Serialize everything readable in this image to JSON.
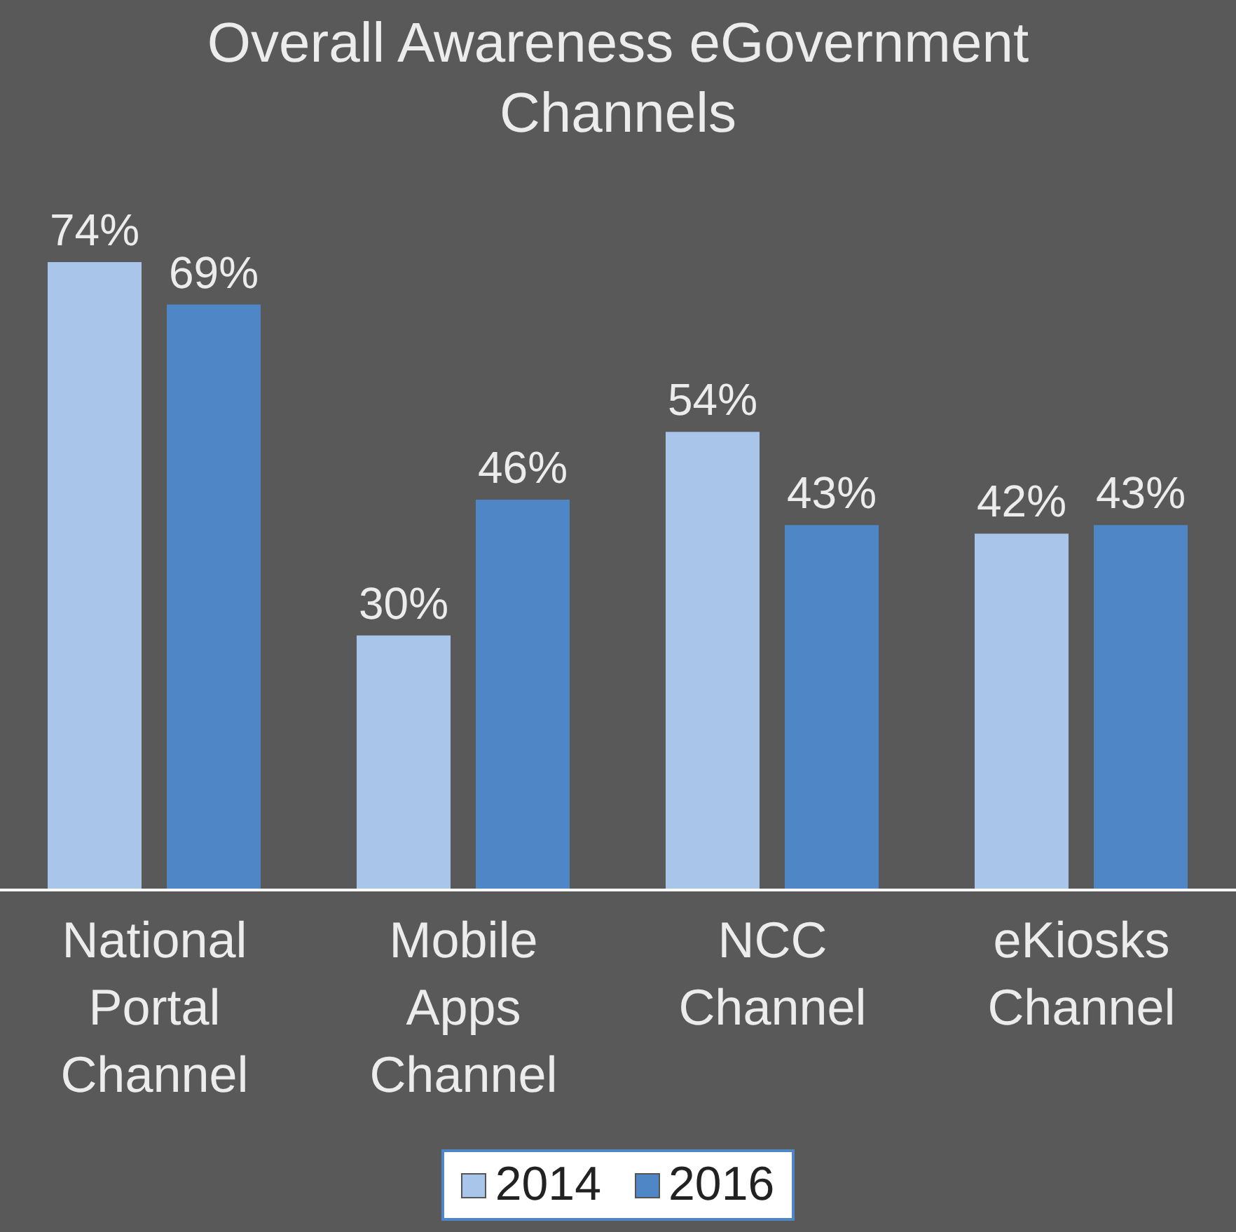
{
  "chart_data": {
    "type": "bar",
    "title": "Overall Awareness eGovernment Channels",
    "categories": [
      "National Portal Channel",
      "Mobile Apps Channel",
      "NCC Channel",
      "eKiosks Channel"
    ],
    "series": [
      {
        "name": "2014",
        "color": "#a9c5ea",
        "values": [
          74,
          30,
          54,
          42
        ],
        "value_labels": [
          "74%",
          "30%",
          "54%",
          "42%"
        ]
      },
      {
        "name": "2016",
        "color": "#4f86c6",
        "values": [
          69,
          46,
          43,
          43
        ],
        "value_labels": [
          "69%",
          "46%",
          "43%",
          "43%"
        ]
      }
    ],
    "legend": "bottom",
    "grid": false
  }
}
